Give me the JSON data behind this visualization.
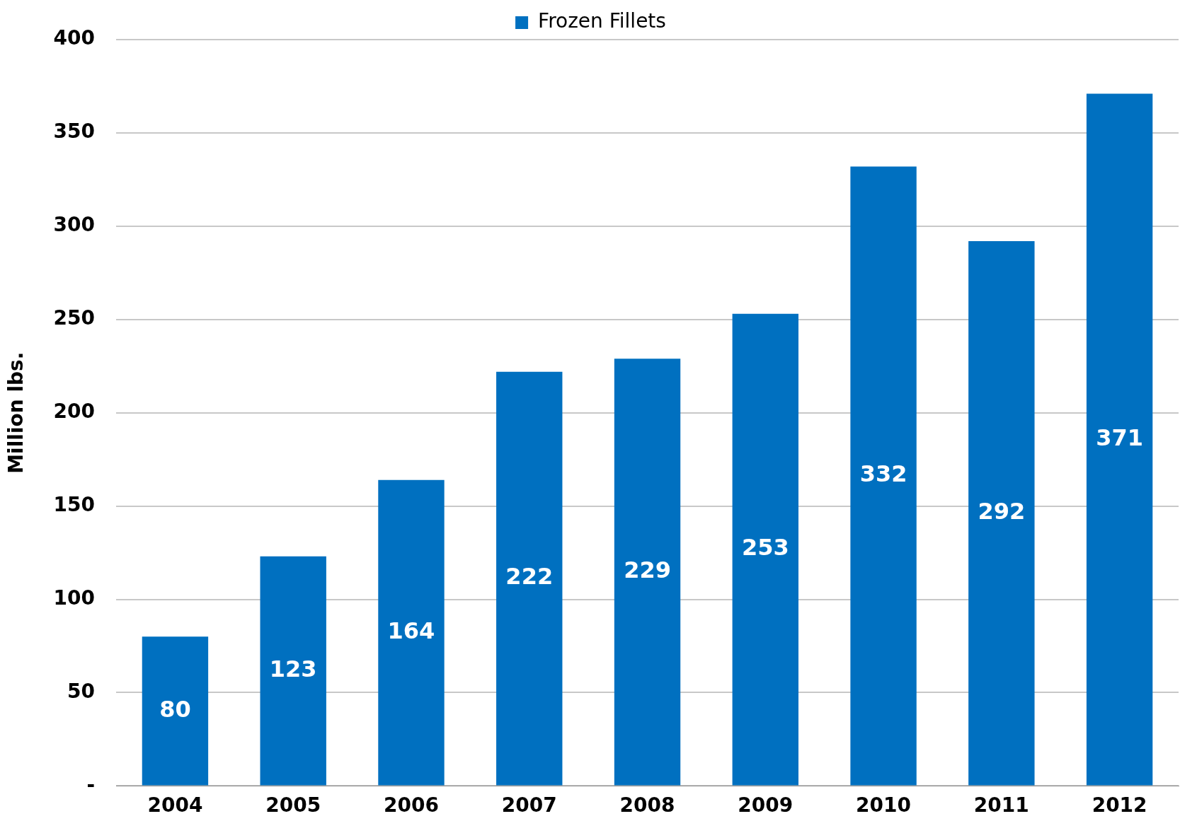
{
  "chart_data": {
    "type": "bar",
    "ylabel": "Million lbs.",
    "categories": [
      "2004",
      "2005",
      "2006",
      "2007",
      "2008",
      "2009",
      "2010",
      "2011",
      "2012"
    ],
    "series": [
      {
        "name": "Frozen Fillets",
        "color": "#0070c0",
        "values": [
          80,
          123,
          164,
          222,
          229,
          253,
          332,
          292,
          371
        ]
      }
    ],
    "ylim": [
      0,
      400
    ],
    "yticks": [
      {
        "value": 0,
        "label": "-"
      },
      50,
      100,
      150,
      200,
      250,
      300,
      350,
      400
    ],
    "grid": "y",
    "legend": "top",
    "data_labels": true
  }
}
